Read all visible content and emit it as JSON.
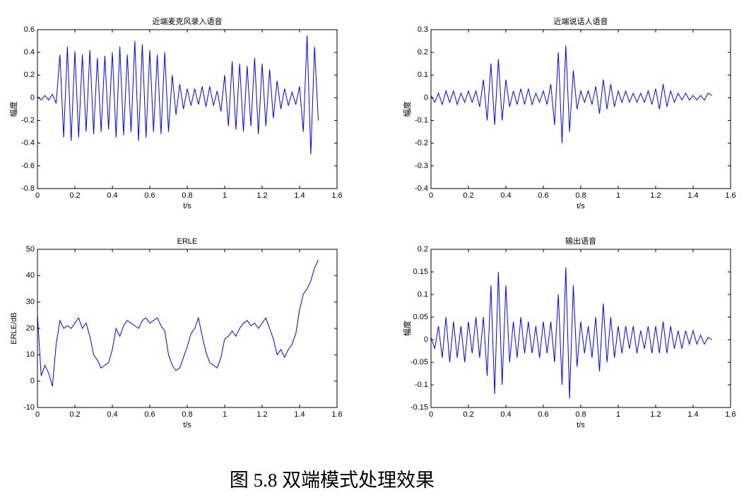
{
  "chart_data": [
    {
      "type": "line",
      "title": "近端麦克风录入语音",
      "xlabel": "t/s",
      "ylabel": "幅度",
      "color": "#0000ff",
      "x": [
        0,
        0.02,
        0.04,
        0.06,
        0.08,
        0.1,
        0.12,
        0.14,
        0.16,
        0.18,
        0.2,
        0.22,
        0.24,
        0.26,
        0.28,
        0.3,
        0.32,
        0.34,
        0.36,
        0.38,
        0.4,
        0.42,
        0.44,
        0.46,
        0.48,
        0.5,
        0.52,
        0.54,
        0.56,
        0.58,
        0.6,
        0.62,
        0.64,
        0.66,
        0.68,
        0.7,
        0.72,
        0.74,
        0.76,
        0.78,
        0.8,
        0.82,
        0.84,
        0.86,
        0.88,
        0.9,
        0.92,
        0.94,
        0.96,
        0.98,
        1,
        1.02,
        1.04,
        1.06,
        1.08,
        1.1,
        1.12,
        1.14,
        1.16,
        1.18,
        1.2,
        1.22,
        1.24,
        1.26,
        1.28,
        1.3,
        1.32,
        1.34,
        1.36,
        1.38,
        1.4,
        1.42,
        1.44,
        1.46,
        1.48,
        1.5
      ],
      "values": [
        0.01,
        -0.02,
        0.02,
        -0.02,
        0.03,
        -0.05,
        0.38,
        -0.35,
        0.45,
        -0.38,
        0.41,
        -0.35,
        0.38,
        -0.3,
        0.42,
        -0.32,
        0.35,
        -0.3,
        0.37,
        -0.28,
        0.4,
        -0.35,
        0.45,
        -0.33,
        0.38,
        -0.3,
        0.5,
        -0.38,
        0.47,
        -0.35,
        0.42,
        -0.3,
        0.38,
        -0.32,
        0.4,
        -0.3,
        0.2,
        -0.15,
        0.12,
        -0.1,
        0.08,
        -0.07,
        0.08,
        -0.06,
        0.1,
        -0.08,
        0.1,
        -0.07,
        0.06,
        -0.12,
        0.2,
        -0.25,
        0.32,
        -0.28,
        0.3,
        -0.3,
        0.28,
        -0.25,
        0.35,
        -0.32,
        0.3,
        -0.25,
        0.25,
        -0.18,
        0.15,
        -0.1,
        0.08,
        -0.07,
        0.05,
        -0.06,
        0.1,
        -0.3,
        0.55,
        -0.5,
        0.45,
        -0.2
      ],
      "xlim": [
        0,
        1.6
      ],
      "ylim": [
        -0.8,
        0.6
      ],
      "xticks": [
        0,
        0.2,
        0.4,
        0.6,
        0.8,
        1,
        1.2,
        1.4,
        1.6
      ],
      "yticks": [
        -0.8,
        -0.6,
        -0.4,
        -0.2,
        0,
        0.2,
        0.4,
        0.6
      ]
    },
    {
      "type": "line",
      "title": "近端说话人语音",
      "xlabel": "t/s",
      "ylabel": "幅度",
      "color": "#0000ff",
      "x": [
        0,
        0.02,
        0.04,
        0.06,
        0.08,
        0.1,
        0.12,
        0.14,
        0.16,
        0.18,
        0.2,
        0.22,
        0.24,
        0.26,
        0.28,
        0.3,
        0.32,
        0.34,
        0.36,
        0.38,
        0.4,
        0.42,
        0.44,
        0.46,
        0.48,
        0.5,
        0.52,
        0.54,
        0.56,
        0.58,
        0.6,
        0.62,
        0.64,
        0.66,
        0.68,
        0.7,
        0.72,
        0.74,
        0.76,
        0.78,
        0.8,
        0.82,
        0.84,
        0.86,
        0.88,
        0.9,
        0.92,
        0.94,
        0.96,
        0.98,
        1,
        1.02,
        1.04,
        1.06,
        1.08,
        1.1,
        1.12,
        1.14,
        1.16,
        1.18,
        1.2,
        1.22,
        1.24,
        1.26,
        1.28,
        1.3,
        1.32,
        1.34,
        1.36,
        1.38,
        1.4,
        1.42,
        1.44,
        1.46,
        1.48,
        1.5
      ],
      "values": [
        0.01,
        -0.02,
        0.02,
        -0.03,
        0.03,
        -0.02,
        0.03,
        -0.03,
        0.02,
        -0.02,
        0.03,
        -0.02,
        0.03,
        -0.04,
        0.08,
        -0.1,
        0.15,
        -0.12,
        0.17,
        -0.1,
        0.08,
        -0.04,
        0.03,
        -0.03,
        0.04,
        -0.03,
        0.04,
        -0.03,
        0.02,
        -0.02,
        0.03,
        -0.03,
        0.06,
        -0.12,
        0.2,
        -0.2,
        0.23,
        -0.15,
        0.12,
        -0.05,
        0.03,
        -0.02,
        0.03,
        -0.03,
        0.05,
        -0.07,
        0.08,
        -0.05,
        0.06,
        -0.04,
        0.03,
        -0.02,
        0.03,
        -0.02,
        0.02,
        -0.02,
        0.02,
        -0.02,
        0.03,
        -0.03,
        0.04,
        -0.05,
        0.06,
        -0.04,
        0.03,
        -0.02,
        0.02,
        -0.01,
        0.02,
        -0.01,
        0.01,
        -0.01,
        0.01,
        -0.01,
        0.02,
        0.01
      ],
      "xlim": [
        0,
        1.6
      ],
      "ylim": [
        -0.4,
        0.3
      ],
      "xticks": [
        0,
        0.2,
        0.4,
        0.6,
        0.8,
        1,
        1.2,
        1.4,
        1.6
      ],
      "yticks": [
        -0.4,
        -0.3,
        -0.2,
        -0.1,
        0,
        0.1,
        0.2,
        0.3
      ]
    },
    {
      "type": "line",
      "title": "ERLE",
      "xlabel": "t/s",
      "ylabel": "ERLE/dB",
      "color": "#0000ff",
      "x": [
        0,
        0.02,
        0.04,
        0.06,
        0.08,
        0.1,
        0.12,
        0.14,
        0.16,
        0.18,
        0.2,
        0.22,
        0.24,
        0.26,
        0.28,
        0.3,
        0.32,
        0.34,
        0.36,
        0.38,
        0.4,
        0.42,
        0.44,
        0.46,
        0.48,
        0.5,
        0.52,
        0.54,
        0.56,
        0.58,
        0.6,
        0.62,
        0.64,
        0.66,
        0.68,
        0.7,
        0.72,
        0.74,
        0.76,
        0.78,
        0.8,
        0.82,
        0.84,
        0.86,
        0.88,
        0.9,
        0.92,
        0.94,
        0.96,
        0.98,
        1,
        1.02,
        1.04,
        1.06,
        1.08,
        1.1,
        1.12,
        1.14,
        1.16,
        1.18,
        1.2,
        1.22,
        1.24,
        1.26,
        1.28,
        1.3,
        1.32,
        1.34,
        1.36,
        1.38,
        1.4,
        1.42,
        1.44,
        1.46,
        1.48,
        1.5
      ],
      "values": [
        25,
        2,
        6,
        3,
        -2,
        14,
        23,
        20,
        21,
        20,
        22,
        24,
        20,
        22,
        17,
        10,
        8,
        5,
        6,
        7,
        12,
        20,
        17,
        21,
        23,
        22,
        21,
        20,
        23,
        24,
        22,
        23,
        24,
        21,
        19,
        10,
        6,
        4,
        5,
        9,
        13,
        18,
        20,
        24,
        17,
        11,
        7,
        6,
        5,
        9,
        16,
        17,
        19,
        17,
        20,
        22,
        23,
        21,
        22,
        20,
        22,
        24,
        20,
        16,
        10,
        12,
        9,
        12,
        14,
        18,
        27,
        33,
        35,
        38,
        43,
        46
      ],
      "xlim": [
        0,
        1.6
      ],
      "ylim": [
        -10,
        50
      ],
      "xticks": [
        0,
        0.2,
        0.4,
        0.6,
        0.8,
        1,
        1.2,
        1.4,
        1.6
      ],
      "yticks": [
        -10,
        0,
        10,
        20,
        30,
        40,
        50
      ]
    },
    {
      "type": "line",
      "title": "输出语音",
      "xlabel": "t/s",
      "ylabel": "幅度",
      "color": "#0000ff",
      "x": [
        0,
        0.02,
        0.04,
        0.06,
        0.08,
        0.1,
        0.12,
        0.14,
        0.16,
        0.18,
        0.2,
        0.22,
        0.24,
        0.26,
        0.28,
        0.3,
        0.32,
        0.34,
        0.36,
        0.38,
        0.4,
        0.42,
        0.44,
        0.46,
        0.48,
        0.5,
        0.52,
        0.54,
        0.56,
        0.58,
        0.6,
        0.62,
        0.64,
        0.66,
        0.68,
        0.7,
        0.72,
        0.74,
        0.76,
        0.78,
        0.8,
        0.82,
        0.84,
        0.86,
        0.88,
        0.9,
        0.92,
        0.94,
        0.96,
        0.98,
        1,
        1.02,
        1.04,
        1.06,
        1.08,
        1.1,
        1.12,
        1.14,
        1.16,
        1.18,
        1.2,
        1.22,
        1.24,
        1.26,
        1.28,
        1.3,
        1.32,
        1.34,
        1.36,
        1.38,
        1.4,
        1.42,
        1.44,
        1.46,
        1.48,
        1.5
      ],
      "values": [
        0.005,
        -0.02,
        0.03,
        -0.04,
        0.05,
        -0.05,
        0.04,
        -0.04,
        0.03,
        -0.05,
        0.04,
        -0.03,
        0.05,
        -0.04,
        0.05,
        -0.08,
        0.12,
        -0.12,
        0.15,
        -0.1,
        0.12,
        -0.05,
        0.04,
        -0.04,
        0.05,
        -0.03,
        0.04,
        -0.03,
        0.03,
        -0.04,
        0.04,
        -0.03,
        0.04,
        -0.05,
        0.1,
        -0.1,
        0.16,
        -0.13,
        0.12,
        -0.06,
        0.04,
        -0.03,
        0.03,
        -0.04,
        0.05,
        -0.07,
        0.08,
        -0.05,
        0.05,
        -0.04,
        0.03,
        -0.03,
        0.03,
        -0.02,
        0.03,
        -0.03,
        0.02,
        -0.02,
        0.03,
        -0.03,
        0.03,
        -0.03,
        0.04,
        -0.03,
        0.03,
        -0.02,
        0.02,
        -0.02,
        0.02,
        -0.01,
        0.02,
        -0.01,
        0.01,
        -0.01,
        0.005,
        0
      ],
      "xlim": [
        0,
        1.6
      ],
      "ylim": [
        -0.15,
        0.2
      ],
      "xticks": [
        0,
        0.2,
        0.4,
        0.6,
        0.8,
        1,
        1.2,
        1.4,
        1.6
      ],
      "yticks": [
        -0.15,
        -0.1,
        -0.05,
        0,
        0.05,
        0.1,
        0.15,
        0.2
      ]
    }
  ],
  "caption": "图 5.8 双端模式处理效果"
}
